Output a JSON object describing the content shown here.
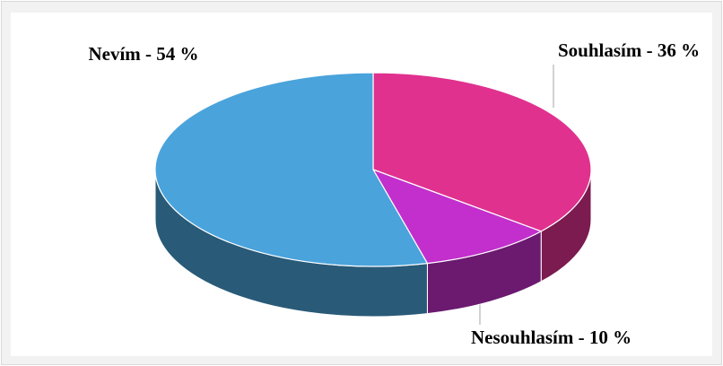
{
  "chart_data": {
    "type": "pie3d",
    "categories": [
      "Souhlasím",
      "Nesouhlasím",
      "Nevím"
    ],
    "values": [
      36,
      10,
      54
    ],
    "value_labels": [
      "Souhlasím - 36 %",
      "Nesouhlasím - 10 %",
      "Nevím - 54 %"
    ],
    "colors": [
      "#e0318f",
      "#c22fcc",
      "#4aa3db"
    ]
  }
}
